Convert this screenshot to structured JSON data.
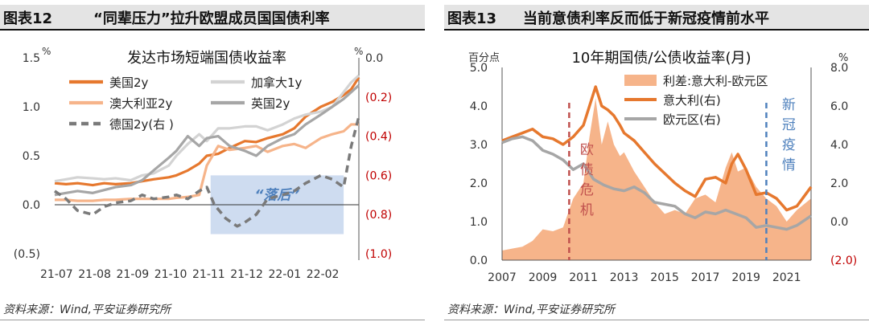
{
  "left": {
    "fig_label": "图表12",
    "title": "“同辈压力”拉升欧盟成员国国债利率",
    "source": "资料来源：Wind,平安证券研究所",
    "chart_data": {
      "type": "line",
      "title": "发达市场短端国债收益率",
      "left_unit": "%",
      "right_unit": "%",
      "left_ticks": [
        "1.5",
        "1.0",
        "0.5",
        "0.0",
        "(0.5)"
      ],
      "right_ticks": [
        "0.0",
        "(0.2)",
        "(0.4)",
        "(0.6)",
        "(0.8)",
        "(1.0)"
      ],
      "ylim_left": [
        -0.5,
        1.5
      ],
      "ylim_right": [
        -1.0,
        0.0
      ],
      "x_ticks": [
        "21-07",
        "21-08",
        "21-09",
        "21-10",
        "21-11",
        "21-12",
        "22-01",
        "22-02"
      ],
      "annotation": "“落后”",
      "shaded_region": {
        "x_from": 4.1,
        "x_to": 7.6,
        "y_from": -0.3,
        "y_to": 0.3
      },
      "series": [
        {
          "name": "美国2y",
          "axis": "left",
          "color": "#e6782e",
          "width": 3.2,
          "dash": "",
          "x": [
            0,
            0.3,
            0.6,
            1,
            1.3,
            1.6,
            2,
            2.3,
            2.6,
            3,
            3.2,
            3.5,
            3.8,
            4,
            4.3,
            4.6,
            5,
            5.3,
            5.6,
            6,
            6.3,
            6.6,
            7,
            7.3,
            7.6,
            7.8,
            8
          ],
          "y": [
            0.22,
            0.21,
            0.22,
            0.2,
            0.22,
            0.21,
            0.22,
            0.24,
            0.26,
            0.28,
            0.3,
            0.35,
            0.42,
            0.5,
            0.52,
            0.58,
            0.65,
            0.64,
            0.68,
            0.72,
            0.78,
            0.9,
            1.0,
            1.05,
            1.12,
            1.18,
            1.3
          ]
        },
        {
          "name": "加拿大1y",
          "axis": "left",
          "color": "#d3d3d3",
          "width": 3.2,
          "dash": "",
          "x": [
            0,
            0.3,
            0.6,
            1,
            1.3,
            1.6,
            2,
            2.3,
            2.6,
            3,
            3.2,
            3.5,
            3.8,
            4,
            4.3,
            4.6,
            5,
            5.3,
            5.6,
            6,
            6.3,
            6.6,
            7,
            7.3,
            7.6,
            7.8,
            8
          ],
          "y": [
            0.24,
            0.26,
            0.28,
            0.27,
            0.26,
            0.27,
            0.25,
            0.3,
            0.32,
            0.4,
            0.5,
            0.62,
            0.72,
            0.65,
            0.78,
            0.78,
            0.8,
            0.8,
            0.76,
            0.82,
            0.88,
            0.92,
            0.95,
            1.0,
            1.15,
            1.25,
            1.32
          ]
        },
        {
          "name": "澳大利亚2y",
          "axis": "left",
          "color": "#f6b48a",
          "width": 3.2,
          "dash": "",
          "x": [
            0,
            0.3,
            0.6,
            1,
            1.3,
            1.6,
            2,
            2.3,
            2.6,
            3,
            3.2,
            3.5,
            3.8,
            4,
            4.3,
            4.6,
            5,
            5.3,
            5.6,
            6,
            6.3,
            6.6,
            7,
            7.3,
            7.6,
            7.8,
            8
          ],
          "y": [
            0.05,
            0.05,
            0.04,
            0.04,
            0.05,
            0.05,
            0.06,
            0.06,
            0.06,
            0.06,
            0.07,
            0.08,
            0.1,
            0.4,
            0.6,
            0.56,
            0.58,
            0.6,
            0.54,
            0.6,
            0.62,
            0.58,
            0.68,
            0.72,
            0.75,
            0.82,
            0.82
          ]
        },
        {
          "name": "英国2y",
          "axis": "left",
          "color": "#a6a6a6",
          "width": 3.2,
          "dash": "",
          "x": [
            0,
            0.3,
            0.6,
            1,
            1.3,
            1.6,
            2,
            2.3,
            2.6,
            3,
            3.2,
            3.5,
            3.8,
            4,
            4.3,
            4.6,
            5,
            5.3,
            5.6,
            6,
            6.3,
            6.6,
            7,
            7.3,
            7.6,
            7.8,
            8
          ],
          "y": [
            0.1,
            0.12,
            0.14,
            0.12,
            0.15,
            0.18,
            0.2,
            0.25,
            0.35,
            0.48,
            0.55,
            0.7,
            0.6,
            0.68,
            0.7,
            0.6,
            0.55,
            0.5,
            0.6,
            0.68,
            0.72,
            0.82,
            0.92,
            1.0,
            1.08,
            1.15,
            1.22
          ]
        },
        {
          "name": "德国2y(右 )",
          "axis": "right",
          "color": "#7a7a7a",
          "width": 3.5,
          "dash": "9,6",
          "x": [
            0,
            0.3,
            0.6,
            1,
            1.3,
            1.6,
            2,
            2.3,
            2.6,
            3,
            3.2,
            3.5,
            3.8,
            4,
            4.2,
            4.5,
            4.8,
            5,
            5.3,
            5.6,
            6,
            6.3,
            6.6,
            7,
            7.3,
            7.6,
            7.8,
            8
          ],
          "y": [
            -0.68,
            -0.72,
            -0.78,
            -0.8,
            -0.76,
            -0.74,
            -0.73,
            -0.7,
            -0.72,
            -0.71,
            -0.7,
            -0.72,
            -0.68,
            -0.66,
            -0.75,
            -0.82,
            -0.86,
            -0.84,
            -0.8,
            -0.72,
            -0.7,
            -0.68,
            -0.64,
            -0.6,
            -0.62,
            -0.66,
            -0.45,
            -0.3
          ]
        }
      ]
    }
  },
  "right": {
    "fig_label": "图表13",
    "title": "当前意债利率反而低于新冠疫情前水平",
    "source": "资料来源：Wind,平安证券研究所",
    "chart_data": {
      "type": "line",
      "title": "10年期国债/公债收益率(月)",
      "left_unit": "百分点",
      "right_unit": "%",
      "left_ticks": [
        "5.0",
        "4.0",
        "3.0",
        "2.0",
        "1.0",
        "0.0"
      ],
      "right_ticks": [
        "8.0",
        "6.0",
        "4.0",
        "2.0",
        "0.0",
        "(2.0)"
      ],
      "ylim_left": [
        0,
        5
      ],
      "ylim_right": [
        -2,
        8
      ],
      "x_ticks": [
        "2007",
        "2009",
        "2011",
        "2013",
        "2015",
        "2017",
        "2019",
        "2021"
      ],
      "xlim": [
        2007,
        2022.2
      ],
      "vlines": [
        {
          "x": 2010.3,
          "label": [
            "欧",
            "债",
            "危",
            "机"
          ],
          "color": "#c0504d"
        },
        {
          "x": 2020.0,
          "label": [
            "新",
            "冠",
            "疫",
            "情"
          ],
          "color": "#4f81bd"
        }
      ],
      "area": {
        "name": "利差:意大利-欧元区",
        "axis": "left",
        "color": "#f6b48a",
        "x": [
          2007,
          2008,
          2008.5,
          2009,
          2009.5,
          2010,
          2010.5,
          2011,
          2011.3,
          2011.6,
          2011.9,
          2012.2,
          2012.5,
          2012.8,
          2013,
          2013.5,
          2014,
          2014.5,
          2015,
          2015.5,
          2016,
          2016.5,
          2017,
          2017.5,
          2018,
          2018.3,
          2018.6,
          2019,
          2019.5,
          2020,
          2020.5,
          2021,
          2021.5,
          2022.2
        ],
        "y": [
          0.25,
          0.35,
          0.5,
          0.8,
          0.75,
          0.85,
          1.6,
          2.0,
          3.2,
          4.2,
          3.0,
          3.6,
          3.0,
          2.7,
          2.8,
          2.3,
          1.9,
          1.5,
          1.2,
          1.3,
          1.2,
          1.6,
          1.7,
          1.5,
          2.4,
          2.8,
          2.3,
          2.4,
          1.9,
          1.6,
          1.4,
          1.0,
          1.3,
          1.6
        ]
      },
      "series": [
        {
          "name": "意大利(右)",
          "axis": "right",
          "color": "#e6782e",
          "width": 3.5,
          "x": [
            2007,
            2007.5,
            2008,
            2008.5,
            2009,
            2009.5,
            2010,
            2010.5,
            2011,
            2011.3,
            2011.6,
            2011.9,
            2012.2,
            2012.5,
            2012.8,
            2013,
            2013.5,
            2014,
            2014.5,
            2015,
            2015.5,
            2016,
            2016.5,
            2017,
            2017.5,
            2018,
            2018.3,
            2018.6,
            2019,
            2019.5,
            2020,
            2020.5,
            2021,
            2021.5,
            2022.2
          ],
          "y": [
            4.2,
            4.4,
            4.6,
            4.8,
            4.4,
            4.3,
            4.0,
            4.4,
            5.0,
            6.0,
            7.0,
            6.0,
            5.8,
            5.5,
            5.0,
            4.6,
            4.2,
            3.6,
            3.0,
            2.5,
            2.0,
            1.6,
            1.3,
            2.2,
            2.3,
            2.0,
            3.0,
            3.5,
            2.7,
            1.4,
            1.5,
            1.2,
            0.6,
            0.8,
            1.8
          ]
        },
        {
          "name": "欧元区(右)",
          "axis": "right",
          "color": "#a6a6a6",
          "width": 3.5,
          "x": [
            2007,
            2007.5,
            2008,
            2008.5,
            2009,
            2009.5,
            2010,
            2010.5,
            2011,
            2011.5,
            2012,
            2012.5,
            2013,
            2013.5,
            2014,
            2014.5,
            2015,
            2015.5,
            2016,
            2016.5,
            2017,
            2017.5,
            2018,
            2018.5,
            2019,
            2019.5,
            2020,
            2020.5,
            2021,
            2021.5,
            2022.2
          ],
          "y": [
            4.1,
            4.3,
            4.4,
            4.2,
            3.7,
            3.5,
            3.2,
            2.7,
            3.0,
            2.2,
            1.9,
            1.7,
            1.6,
            1.8,
            1.5,
            1.0,
            0.9,
            0.8,
            0.4,
            0.2,
            0.5,
            0.4,
            0.6,
            0.4,
            0.2,
            -0.3,
            -0.2,
            -0.3,
            -0.4,
            -0.2,
            0.3
          ]
        }
      ]
    }
  }
}
